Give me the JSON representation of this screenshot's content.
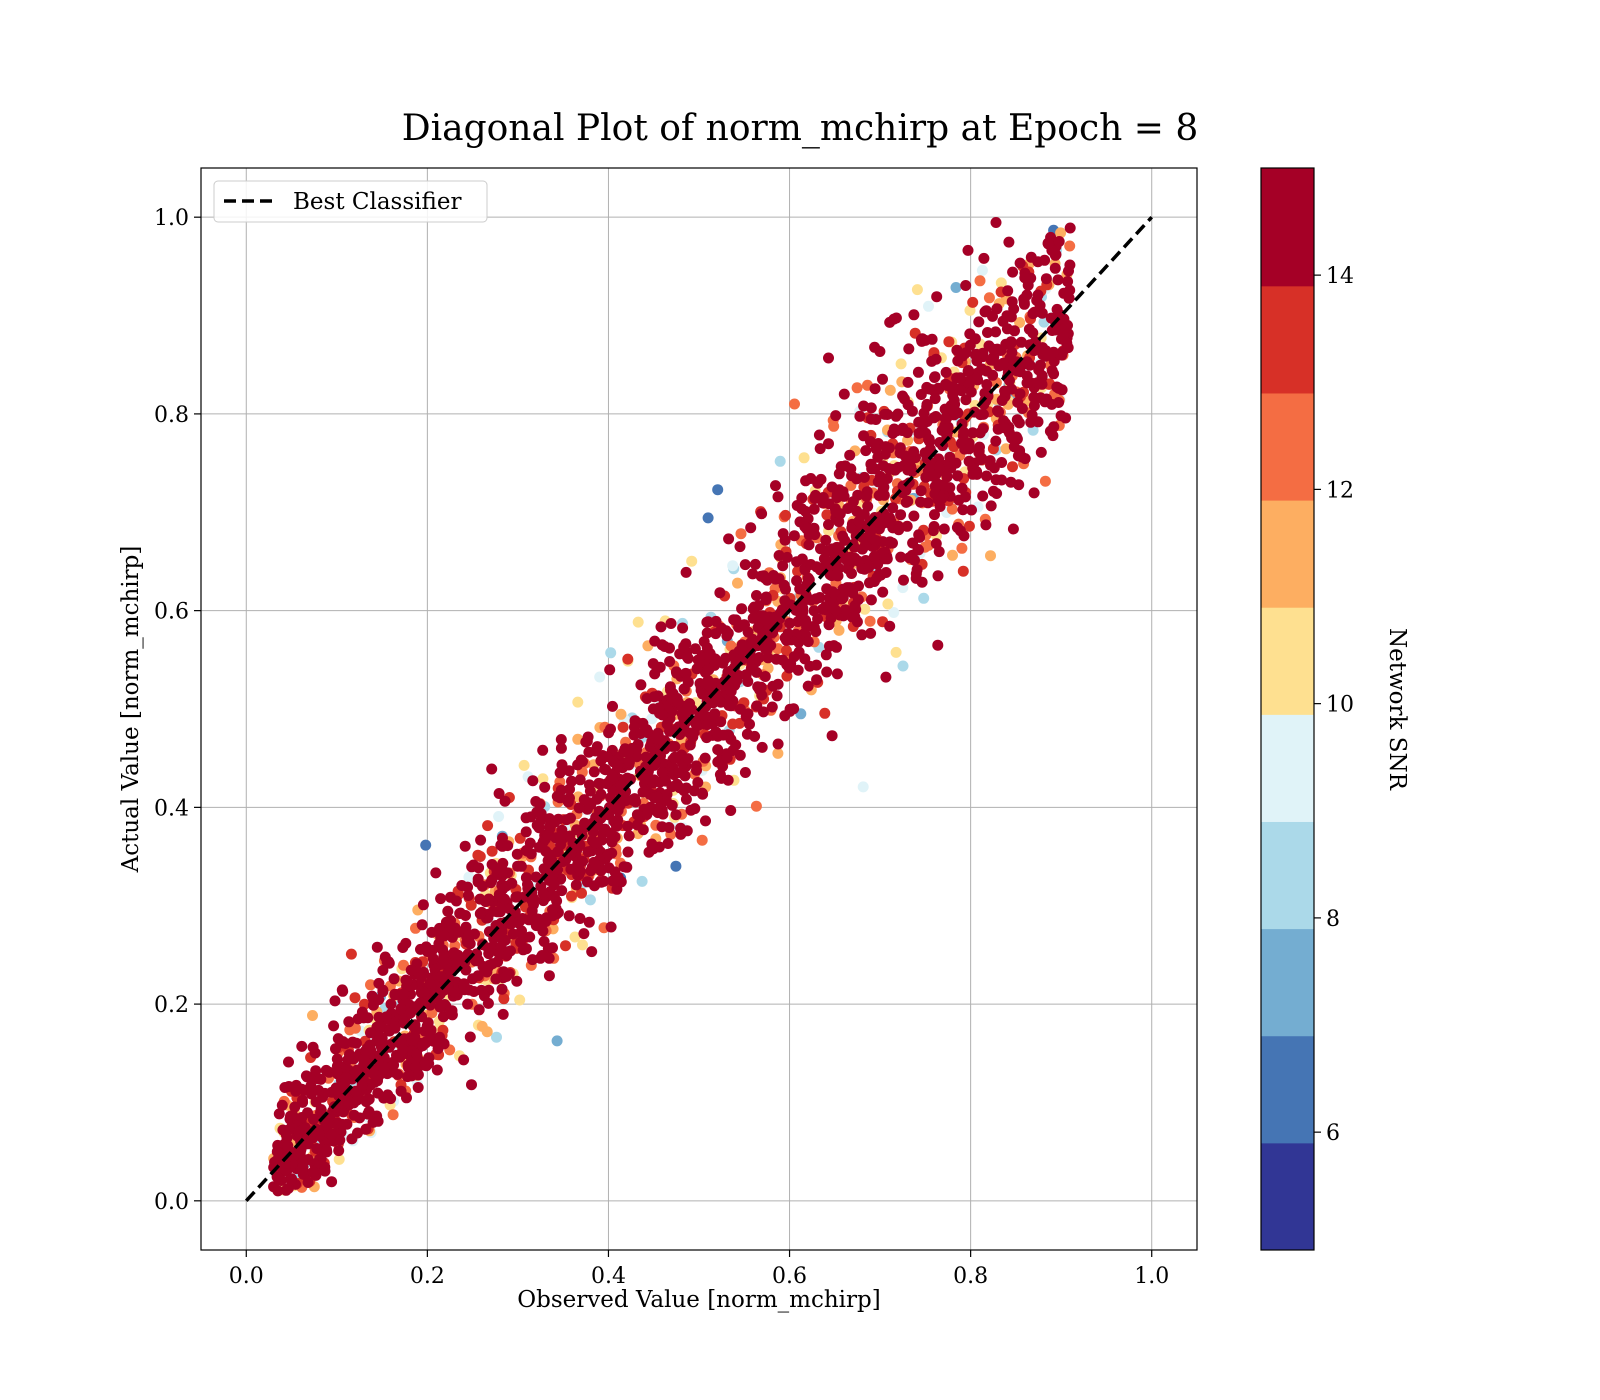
{
  "chart_data": {
    "type": "scatter",
    "title": "Diagonal Plot of norm_mchirp at Epoch = 8",
    "xlabel": "Observed Value [norm_mchirp]",
    "ylabel": "Actual Value [norm_mchirp]",
    "xlim": [
      -0.05,
      1.05
    ],
    "ylim": [
      -0.05,
      1.05
    ],
    "xticks": [
      0.0,
      0.2,
      0.4,
      0.6,
      0.8,
      1.0
    ],
    "yticks": [
      0.0,
      0.2,
      0.4,
      0.6,
      0.8,
      1.0
    ],
    "xtick_labels": [
      "0.0",
      "0.2",
      "0.4",
      "0.6",
      "0.8",
      "1.0"
    ],
    "ytick_labels": [
      "0.0",
      "0.2",
      "0.4",
      "0.6",
      "0.8",
      "1.0"
    ],
    "grid": true,
    "legend": {
      "position": "upper-left",
      "entries": [
        {
          "label": "Best Classifier",
          "style": "dashed",
          "color": "#000000"
        }
      ]
    },
    "reference_line": {
      "name": "Best Classifier",
      "x": [
        0.0,
        1.0
      ],
      "y": [
        0.0,
        1.0
      ],
      "style": "dashed",
      "color": "#000000"
    },
    "scatter_description_note": "",
    "x_range_of_points": [
      0.03,
      0.91
    ],
    "y_range_of_points": [
      0.0,
      1.0
    ],
    "colorbar": {
      "label": "Network SNR",
      "range": [
        4.9,
        15.0
      ],
      "boundaries": [
        4.9,
        5.9,
        6.9,
        7.9,
        8.9,
        9.9,
        10.9,
        11.9,
        12.9,
        13.9,
        15.0
      ],
      "colors": [
        "#313695",
        "#4575b4",
        "#74add1",
        "#abd9e9",
        "#e0f3f8",
        "#fee090",
        "#fdae61",
        "#f46d43",
        "#d73027",
        "#a50026"
      ],
      "ticks": [
        6,
        8,
        10,
        12,
        14
      ],
      "tick_labels": [
        "6",
        "8",
        "10",
        "12",
        "14"
      ]
    }
  }
}
